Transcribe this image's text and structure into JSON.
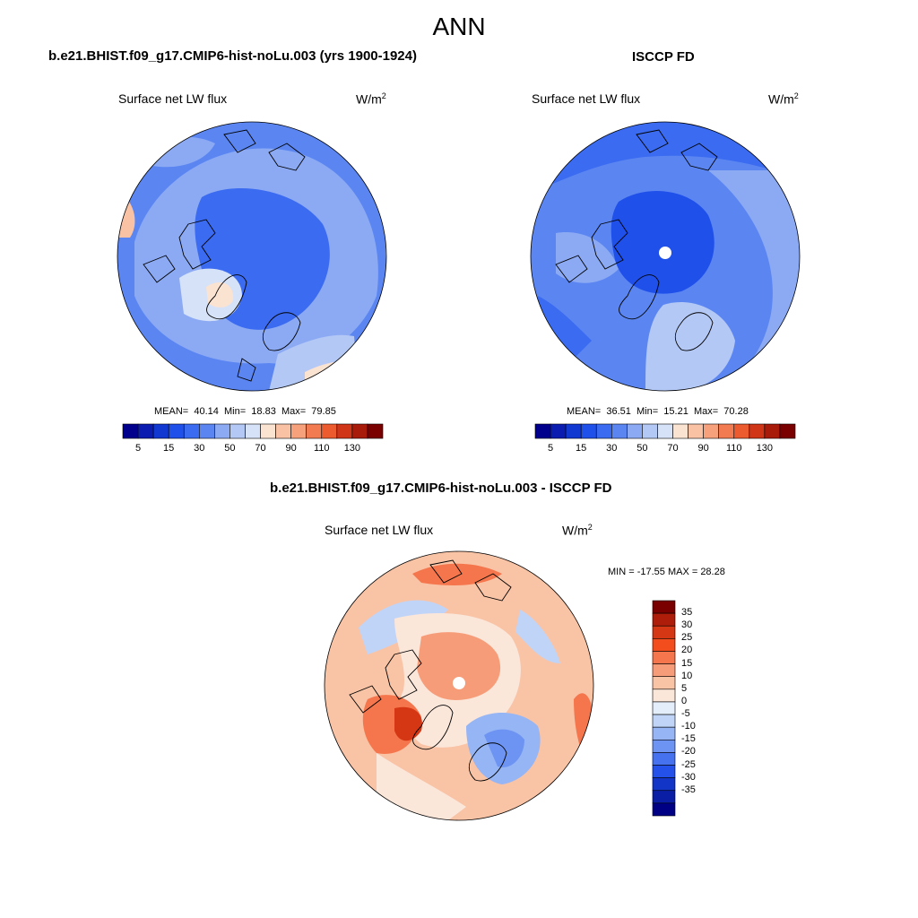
{
  "figure": {
    "title": "ANN",
    "variable": "Surface net LW flux",
    "units": "W/m",
    "units_sup": "2"
  },
  "chart_data": [
    {
      "type": "heatmap",
      "projection": "north-polar-stereographic",
      "title": "b.e21.BHIST.f09_g17.CMIP6-hist-noLu.003 (yrs 1900-1924)",
      "stats": {
        "mean_label": "MEAN=",
        "mean": "40.14",
        "min_label": "Min=",
        "min": "18.83",
        "max_label": "Max=",
        "max": "79.85"
      },
      "colorbar": {
        "levels": [
          5,
          10,
          15,
          20,
          25,
          30,
          40,
          50,
          60,
          70,
          80,
          90,
          100,
          110,
          120,
          130
        ],
        "tick_labels": [
          "5",
          "15",
          "30",
          "50",
          "70",
          "90",
          "110",
          "130"
        ],
        "colors": [
          "#00008c",
          "#0a1db0",
          "#1238d2",
          "#1f50ea",
          "#3b6bf0",
          "#5b86f2",
          "#8caaf4",
          "#b4c8f6",
          "#d6e2f8",
          "#fbe3d2",
          "#f9c2a5",
          "#f6a07c",
          "#f27b52",
          "#ec5a2f",
          "#cf3516",
          "#a81a0a",
          "#7a0000"
        ]
      }
    },
    {
      "type": "heatmap",
      "projection": "north-polar-stereographic",
      "title": "ISCCP FD",
      "stats": {
        "mean_label": "MEAN=",
        "mean": "36.51",
        "min_label": "Min=",
        "min": "15.21",
        "max_label": "Max=",
        "max": "70.28"
      },
      "colorbar": {
        "levels": [
          5,
          10,
          15,
          20,
          25,
          30,
          40,
          50,
          60,
          70,
          80,
          90,
          100,
          110,
          120,
          130
        ],
        "tick_labels": [
          "5",
          "15",
          "30",
          "50",
          "70",
          "90",
          "110",
          "130"
        ],
        "colors": [
          "#00008c",
          "#0a1db0",
          "#1238d2",
          "#1f50ea",
          "#3b6bf0",
          "#5b86f2",
          "#8caaf4",
          "#b4c8f6",
          "#d6e2f8",
          "#fbe3d2",
          "#f9c2a5",
          "#f6a07c",
          "#f27b52",
          "#ec5a2f",
          "#cf3516",
          "#a81a0a",
          "#7a0000"
        ]
      }
    },
    {
      "type": "heatmap",
      "projection": "north-polar-stereographic",
      "title": "b.e21.BHIST.f09_g17.CMIP6-hist-noLu.003 - ISCCP FD",
      "minmax_label": "MIN = -17.55 MAX =  28.28",
      "min": -17.55,
      "max": 28.28,
      "colorbar": {
        "tick_labels": [
          "35",
          "30",
          "25",
          "20",
          "15",
          "10",
          "5",
          "0",
          "-5",
          "-10",
          "-15",
          "-20",
          "-25",
          "-30",
          "-35"
        ],
        "colors": [
          "#7a0000",
          "#ae1c0a",
          "#d53613",
          "#f34d1e",
          "#f5764c",
          "#f79c78",
          "#f9c3a6",
          "#fbe6da",
          "#e4edfa",
          "#c0d4f8",
          "#96b5f5",
          "#6d94f2",
          "#4672ef",
          "#2351ea",
          "#1235c7",
          "#0a1ea5",
          "#000085"
        ]
      }
    }
  ]
}
